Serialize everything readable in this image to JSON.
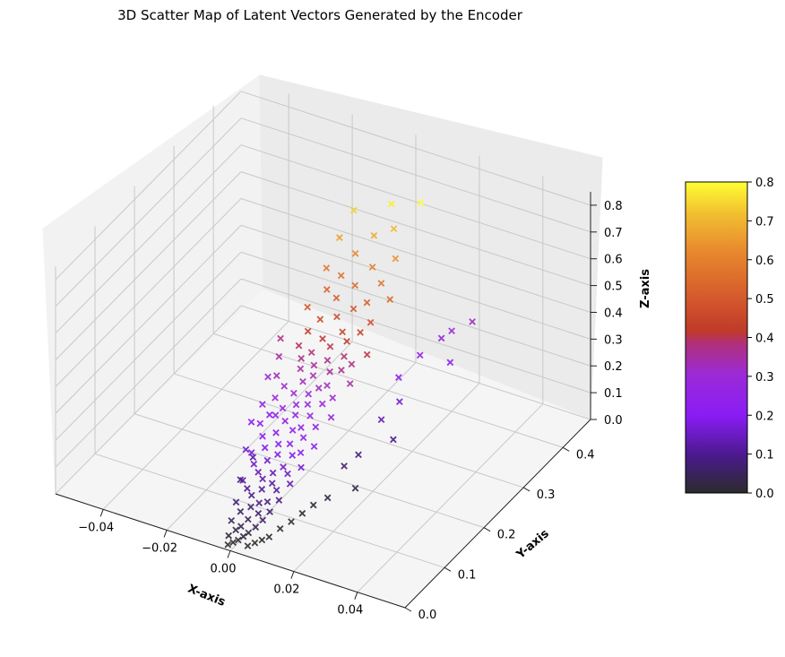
{
  "chart_data": {
    "type": "scatter",
    "projection": "3d",
    "title": "3D Scatter Map of Latent Vectors Generated by the Encoder",
    "xlabel": "X-axis",
    "ylabel": "Y-axis",
    "zlabel": "Z-axis",
    "xlim": [
      -0.055,
      0.055
    ],
    "ylim": [
      0,
      0.47
    ],
    "zlim": [
      0,
      0.85
    ],
    "xticks": [
      "−0.04",
      "−0.02",
      "0.00",
      "0.02",
      "0.04"
    ],
    "yticks": [
      "0.0",
      "0.1",
      "0.2",
      "0.3",
      "0.4"
    ],
    "zticks": [
      "0.0",
      "0.1",
      "0.2",
      "0.3",
      "0.4",
      "0.5",
      "0.6",
      "0.7",
      "0.8"
    ],
    "marker": "x",
    "colormap": "gnuplot",
    "color_by": "z",
    "colorbar": {
      "range": [
        0,
        0.8
      ],
      "ticks": [
        "0.0",
        "0.1",
        "0.2",
        "0.3",
        "0.4",
        "0.5",
        "0.6",
        "0.7",
        "0.8"
      ]
    },
    "grid": true,
    "points": [
      {
        "x": -0.002,
        "y": 0.01,
        "z": 0.0
      },
      {
        "x": -0.001,
        "y": 0.015,
        "z": 0.005
      },
      {
        "x": 0.0,
        "y": 0.02,
        "z": 0.01
      },
      {
        "x": -0.003,
        "y": 0.02,
        "z": 0.015
      },
      {
        "x": 0.001,
        "y": 0.025,
        "z": 0.02
      },
      {
        "x": -0.002,
        "y": 0.03,
        "z": 0.025
      },
      {
        "x": 0.002,
        "y": 0.03,
        "z": 0.03
      },
      {
        "x": -0.001,
        "y": 0.035,
        "z": 0.035
      },
      {
        "x": 0.003,
        "y": 0.04,
        "z": 0.04
      },
      {
        "x": -0.004,
        "y": 0.035,
        "z": 0.045
      },
      {
        "x": 0.0,
        "y": 0.045,
        "z": 0.05
      },
      {
        "x": 0.004,
        "y": 0.05,
        "z": 0.055
      },
      {
        "x": -0.003,
        "y": 0.05,
        "z": 0.06
      },
      {
        "x": 0.002,
        "y": 0.055,
        "z": 0.065
      },
      {
        "x": -0.001,
        "y": 0.06,
        "z": 0.07
      },
      {
        "x": 0.005,
        "y": 0.06,
        "z": 0.075
      },
      {
        "x": -0.005,
        "y": 0.055,
        "z": 0.08
      },
      {
        "x": 0.001,
        "y": 0.065,
        "z": 0.085
      },
      {
        "x": 0.003,
        "y": 0.07,
        "z": 0.09
      },
      {
        "x": -0.002,
        "y": 0.07,
        "z": 0.095
      },
      {
        "x": 0.006,
        "y": 0.075,
        "z": 0.1
      },
      {
        "x": -0.004,
        "y": 0.075,
        "z": 0.105
      },
      {
        "x": 0.0,
        "y": 0.08,
        "z": 0.11
      },
      {
        "x": 0.004,
        "y": 0.085,
        "z": 0.115
      },
      {
        "x": -0.006,
        "y": 0.08,
        "z": 0.12
      },
      {
        "x": 0.002,
        "y": 0.09,
        "z": 0.125
      },
      {
        "x": -0.001,
        "y": 0.09,
        "z": 0.13
      },
      {
        "x": 0.007,
        "y": 0.095,
        "z": 0.135
      },
      {
        "x": -0.003,
        "y": 0.095,
        "z": 0.14
      },
      {
        "x": 0.001,
        "y": 0.1,
        "z": 0.145
      },
      {
        "x": 0.005,
        "y": 0.105,
        "z": 0.15
      },
      {
        "x": -0.005,
        "y": 0.1,
        "z": 0.155
      },
      {
        "x": 0.003,
        "y": 0.11,
        "z": 0.16
      },
      {
        "x": -0.002,
        "y": 0.11,
        "z": 0.165
      },
      {
        "x": 0.008,
        "y": 0.115,
        "z": 0.17
      },
      {
        "x": -0.007,
        "y": 0.11,
        "z": 0.175
      },
      {
        "x": 0.0,
        "y": 0.12,
        "z": 0.18
      },
      {
        "x": 0.004,
        "y": 0.125,
        "z": 0.185
      },
      {
        "x": -0.004,
        "y": 0.12,
        "z": 0.19
      },
      {
        "x": 0.006,
        "y": 0.13,
        "z": 0.195
      },
      {
        "x": -0.001,
        "y": 0.13,
        "z": 0.2
      },
      {
        "x": 0.002,
        "y": 0.135,
        "z": 0.205
      },
      {
        "x": -0.006,
        "y": 0.13,
        "z": 0.21
      },
      {
        "x": 0.009,
        "y": 0.14,
        "z": 0.215
      },
      {
        "x": -0.003,
        "y": 0.14,
        "z": 0.22
      },
      {
        "x": 0.005,
        "y": 0.145,
        "z": 0.225
      },
      {
        "x": 0.001,
        "y": 0.15,
        "z": 0.23
      },
      {
        "x": -0.008,
        "y": 0.14,
        "z": 0.235
      },
      {
        "x": 0.003,
        "y": 0.155,
        "z": 0.24
      },
      {
        "x": -0.002,
        "y": 0.155,
        "z": 0.245
      },
      {
        "x": 0.007,
        "y": 0.16,
        "z": 0.25
      },
      {
        "x": -0.005,
        "y": 0.155,
        "z": 0.255
      },
      {
        "x": 0.0,
        "y": 0.165,
        "z": 0.26
      },
      {
        "x": 0.004,
        "y": 0.17,
        "z": 0.265
      },
      {
        "x": -0.004,
        "y": 0.165,
        "z": 0.27
      },
      {
        "x": 0.01,
        "y": 0.175,
        "z": 0.275
      },
      {
        "x": -0.001,
        "y": 0.175,
        "z": 0.28
      },
      {
        "x": 0.002,
        "y": 0.18,
        "z": 0.285
      },
      {
        "x": -0.007,
        "y": 0.17,
        "z": 0.29
      },
      {
        "x": 0.006,
        "y": 0.185,
        "z": 0.295
      },
      {
        "x": -0.003,
        "y": 0.185,
        "z": 0.3
      },
      {
        "x": 0.001,
        "y": 0.19,
        "z": 0.305
      },
      {
        "x": 0.008,
        "y": 0.195,
        "z": 0.31
      },
      {
        "x": -0.006,
        "y": 0.185,
        "z": 0.315
      },
      {
        "x": 0.003,
        "y": 0.2,
        "z": 0.32
      },
      {
        "x": -0.002,
        "y": 0.2,
        "z": 0.325
      },
      {
        "x": 0.005,
        "y": 0.205,
        "z": 0.33
      },
      {
        "x": -0.009,
        "y": 0.19,
        "z": 0.335
      },
      {
        "x": 0.0,
        "y": 0.21,
        "z": 0.34
      },
      {
        "x": 0.011,
        "y": 0.215,
        "z": 0.345
      },
      {
        "x": -0.004,
        "y": 0.21,
        "z": 0.35
      },
      {
        "x": 0.004,
        "y": 0.22,
        "z": 0.355
      },
      {
        "x": -0.001,
        "y": 0.22,
        "z": 0.36
      },
      {
        "x": 0.007,
        "y": 0.225,
        "z": 0.365
      },
      {
        "x": -0.005,
        "y": 0.22,
        "z": 0.37
      },
      {
        "x": 0.002,
        "y": 0.23,
        "z": 0.375
      },
      {
        "x": 0.009,
        "y": 0.235,
        "z": 0.38
      },
      {
        "x": -0.003,
        "y": 0.23,
        "z": 0.385
      },
      {
        "x": 0.006,
        "y": 0.24,
        "z": 0.39
      },
      {
        "x": -0.007,
        "y": 0.23,
        "z": 0.395
      },
      {
        "x": 0.001,
        "y": 0.245,
        "z": 0.4
      },
      {
        "x": 0.012,
        "y": 0.25,
        "z": 0.405
      },
      {
        "x": -0.002,
        "y": 0.25,
        "z": 0.41
      },
      {
        "x": 0.005,
        "y": 0.255,
        "z": 0.42
      },
      {
        "x": -0.006,
        "y": 0.245,
        "z": 0.43
      },
      {
        "x": 0.003,
        "y": 0.26,
        "z": 0.44
      },
      {
        "x": 0.008,
        "y": 0.265,
        "z": 0.45
      },
      {
        "x": -0.004,
        "y": 0.26,
        "z": 0.46
      },
      {
        "x": 0.0,
        "y": 0.27,
        "z": 0.47
      },
      {
        "x": 0.01,
        "y": 0.275,
        "z": 0.48
      },
      {
        "x": -0.008,
        "y": 0.26,
        "z": 0.49
      },
      {
        "x": 0.004,
        "y": 0.28,
        "z": 0.5
      },
      {
        "x": -0.002,
        "y": 0.285,
        "z": 0.51
      },
      {
        "x": 0.007,
        "y": 0.29,
        "z": 0.52
      },
      {
        "x": -0.005,
        "y": 0.285,
        "z": 0.53
      },
      {
        "x": 0.013,
        "y": 0.3,
        "z": 0.54
      },
      {
        "x": 0.002,
        "y": 0.3,
        "z": 0.55
      },
      {
        "x": -0.003,
        "y": 0.305,
        "z": 0.56
      },
      {
        "x": 0.009,
        "y": 0.31,
        "z": 0.57
      },
      {
        "x": -0.007,
        "y": 0.3,
        "z": 0.58
      },
      {
        "x": 0.005,
        "y": 0.32,
        "z": 0.6
      },
      {
        "x": -0.001,
        "y": 0.325,
        "z": 0.62
      },
      {
        "x": 0.011,
        "y": 0.33,
        "z": 0.64
      },
      {
        "x": -0.006,
        "y": 0.325,
        "z": 0.66
      },
      {
        "x": 0.003,
        "y": 0.34,
        "z": 0.68
      },
      {
        "x": 0.008,
        "y": 0.35,
        "z": 0.71
      },
      {
        "x": -0.004,
        "y": 0.345,
        "z": 0.74
      },
      {
        "x": 0.006,
        "y": 0.36,
        "z": 0.78
      },
      {
        "x": 0.014,
        "y": 0.37,
        "z": 0.8
      },
      {
        "x": 0.02,
        "y": 0.4,
        "z": 0.3
      },
      {
        "x": 0.024,
        "y": 0.42,
        "z": 0.32
      },
      {
        "x": 0.018,
        "y": 0.39,
        "z": 0.28
      },
      {
        "x": 0.015,
        "y": 0.36,
        "z": 0.25
      },
      {
        "x": 0.022,
        "y": 0.38,
        "z": 0.22
      },
      {
        "x": 0.012,
        "y": 0.33,
        "z": 0.2
      },
      {
        "x": 0.016,
        "y": 0.3,
        "z": 0.17
      },
      {
        "x": 0.014,
        "y": 0.27,
        "z": 0.14
      },
      {
        "x": 0.019,
        "y": 0.26,
        "z": 0.1
      },
      {
        "x": 0.013,
        "y": 0.22,
        "z": 0.08
      },
      {
        "x": 0.011,
        "y": 0.2,
        "z": 0.06
      },
      {
        "x": 0.017,
        "y": 0.18,
        "z": 0.03
      },
      {
        "x": 0.012,
        "y": 0.15,
        "z": 0.02
      },
      {
        "x": 0.01,
        "y": 0.13,
        "z": 0.015
      },
      {
        "x": 0.009,
        "y": 0.11,
        "z": 0.01
      },
      {
        "x": 0.008,
        "y": 0.09,
        "z": 0.005
      },
      {
        "x": 0.007,
        "y": 0.07,
        "z": 0.005
      },
      {
        "x": 0.006,
        "y": 0.05,
        "z": 0.0
      },
      {
        "x": 0.005,
        "y": 0.04,
        "z": 0.0
      },
      {
        "x": 0.004,
        "y": 0.03,
        "z": 0.0
      },
      {
        "x": 0.003,
        "y": 0.02,
        "z": 0.0
      },
      {
        "x": -0.008,
        "y": 0.09,
        "z": 0.1
      },
      {
        "x": -0.01,
        "y": 0.12,
        "z": 0.16
      },
      {
        "x": -0.012,
        "y": 0.15,
        "z": 0.21
      },
      {
        "x": -0.009,
        "y": 0.13,
        "z": 0.12
      },
      {
        "x": -0.011,
        "y": 0.17,
        "z": 0.25
      },
      {
        "x": -0.013,
        "y": 0.2,
        "z": 0.3
      },
      {
        "x": -0.01,
        "y": 0.18,
        "z": 0.2
      },
      {
        "x": -0.012,
        "y": 0.22,
        "z": 0.35
      },
      {
        "x": -0.014,
        "y": 0.24,
        "z": 0.38
      }
    ]
  }
}
